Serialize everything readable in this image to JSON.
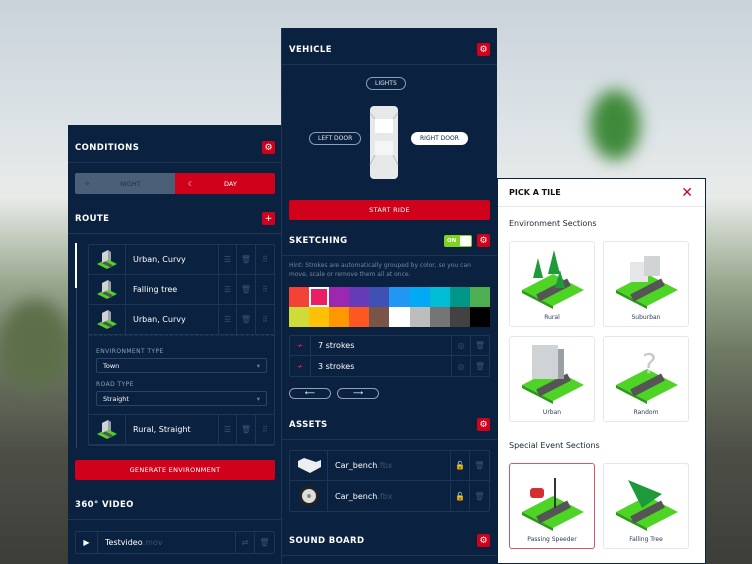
{
  "conditions": {
    "title": "CONDITIONS",
    "night": "NIGHT",
    "day": "DAY",
    "selected": "DAY"
  },
  "route": {
    "title": "ROUTE",
    "items": [
      {
        "label": "Urban, Curvy"
      },
      {
        "label": "Falling tree"
      },
      {
        "label": "Urban, Curvy"
      },
      {
        "label": "Rural, Straight"
      }
    ],
    "env_type_label": "ENVIRONMENT TYPE",
    "env_type_value": "Town",
    "road_type_label": "ROAD TYPE",
    "road_type_value": "Straight",
    "generate": "GENERATE ENVIRONMENT"
  },
  "video": {
    "title": "360° VIDEO",
    "file": "Testvideo",
    "ext": ".mov"
  },
  "vehicle": {
    "title": "VEHICLE",
    "lights": "LIGHTS",
    "left_door": "LEFT DOOR",
    "right_door": "RIGHT DOOR",
    "start": "START RIDE"
  },
  "sketching": {
    "title": "SKETCHING",
    "toggle": "ON",
    "hint": "Hint: Strokes are automatically grouped by color, so you can move, scale or remove them all at once.",
    "colors": [
      "#f44336",
      "#e91e63",
      "#9c27b0",
      "#673ab7",
      "#3f51b5",
      "#2196f3",
      "#03a9f4",
      "#00bcd4",
      "#009688",
      "#4caf50",
      "#cddc39",
      "#ffc107",
      "#ff9800",
      "#ff5722",
      "#795548",
      "#ffffff",
      "#bdbdbd",
      "#757575",
      "#424242",
      "#000000"
    ],
    "selected_color": "#e91e63",
    "strokes": [
      {
        "label": "7 strokes"
      },
      {
        "label": "3 strokes"
      }
    ]
  },
  "assets": {
    "title": "ASSETS",
    "items": [
      {
        "name": "Car_bench",
        "ext": ".fbx"
      },
      {
        "name": "Car_bench",
        "ext": ".fbx"
      }
    ]
  },
  "sound": {
    "title": "SOUND BOARD"
  },
  "picker": {
    "title": "PICK A TILE",
    "env_title": "Environment Sections",
    "env": [
      "Rural",
      "Suburban",
      "Urban",
      "Random"
    ],
    "special_title": "Special Event Sections",
    "special": [
      "Passing Speeder",
      "Falling Tree"
    ],
    "selected": "Passing Speeder"
  },
  "colors": {
    "accent": "#d0021b",
    "panel": "#0b2140",
    "toggle_on": "#7ed321"
  }
}
